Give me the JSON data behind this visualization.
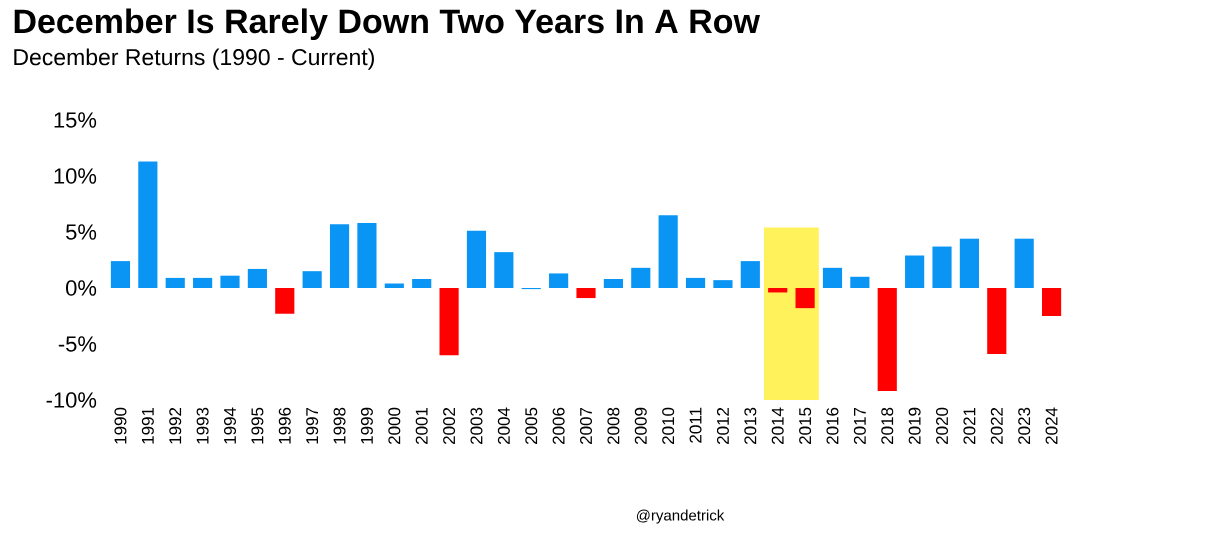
{
  "chart_data": {
    "type": "bar",
    "title": "December Is Rarely Down Two Years In A Row",
    "subtitle": "December Returns (1990 - Current)",
    "categories": [
      "1990",
      "1991",
      "1992",
      "1993",
      "1994",
      "1995",
      "1996",
      "1997",
      "1998",
      "1999",
      "2000",
      "2001",
      "2002",
      "2003",
      "2004",
      "2005",
      "2006",
      "2007",
      "2008",
      "2009",
      "2010",
      "2011",
      "2012",
      "2013",
      "2014",
      "2015",
      "2016",
      "2017",
      "2018",
      "2019",
      "2020",
      "2021",
      "2022",
      "2023",
      "2024"
    ],
    "values": [
      2.4,
      11.3,
      0.9,
      0.9,
      1.1,
      1.7,
      -2.3,
      1.5,
      5.7,
      5.8,
      0.4,
      0.8,
      -6.0,
      5.1,
      3.2,
      -0.1,
      1.3,
      -0.9,
      0.8,
      1.8,
      6.5,
      0.9,
      0.7,
      2.4,
      -0.4,
      -1.8,
      1.8,
      1.0,
      -9.2,
      2.9,
      3.7,
      4.4,
      -5.9,
      4.4,
      -2.5
    ],
    "colors": [
      "#0a95f5",
      "#0a95f5",
      "#0a95f5",
      "#0a95f5",
      "#0a95f5",
      "#0a95f5",
      "#ff0000",
      "#0a95f5",
      "#0a95f5",
      "#0a95f5",
      "#0a95f5",
      "#0a95f5",
      "#ff0000",
      "#0a95f5",
      "#0a95f5",
      "#0a95f5",
      "#0a95f5",
      "#ff0000",
      "#0a95f5",
      "#0a95f5",
      "#0a95f5",
      "#0a95f5",
      "#0a95f5",
      "#0a95f5",
      "#ff0000",
      "#ff0000",
      "#0a95f5",
      "#0a95f5",
      "#ff0000",
      "#0a95f5",
      "#0a95f5",
      "#0a95f5",
      "#ff0000",
      "#0a95f5",
      "#ff0000"
    ],
    "ylim": [
      -10,
      15
    ],
    "yticks": [
      {
        "value": -10,
        "label": "-10%"
      },
      {
        "value": -5,
        "label": "-5%"
      },
      {
        "value": 0,
        "label": "0%"
      },
      {
        "value": 5,
        "label": "5%"
      },
      {
        "value": 10,
        "label": "10%"
      },
      {
        "value": 15,
        "label": "15%"
      }
    ],
    "bands": [
      {
        "axis": "x",
        "from": "2014",
        "to": "2015",
        "color": "#fff25a"
      }
    ],
    "annotations": [
      "@ryandetrick"
    ]
  }
}
